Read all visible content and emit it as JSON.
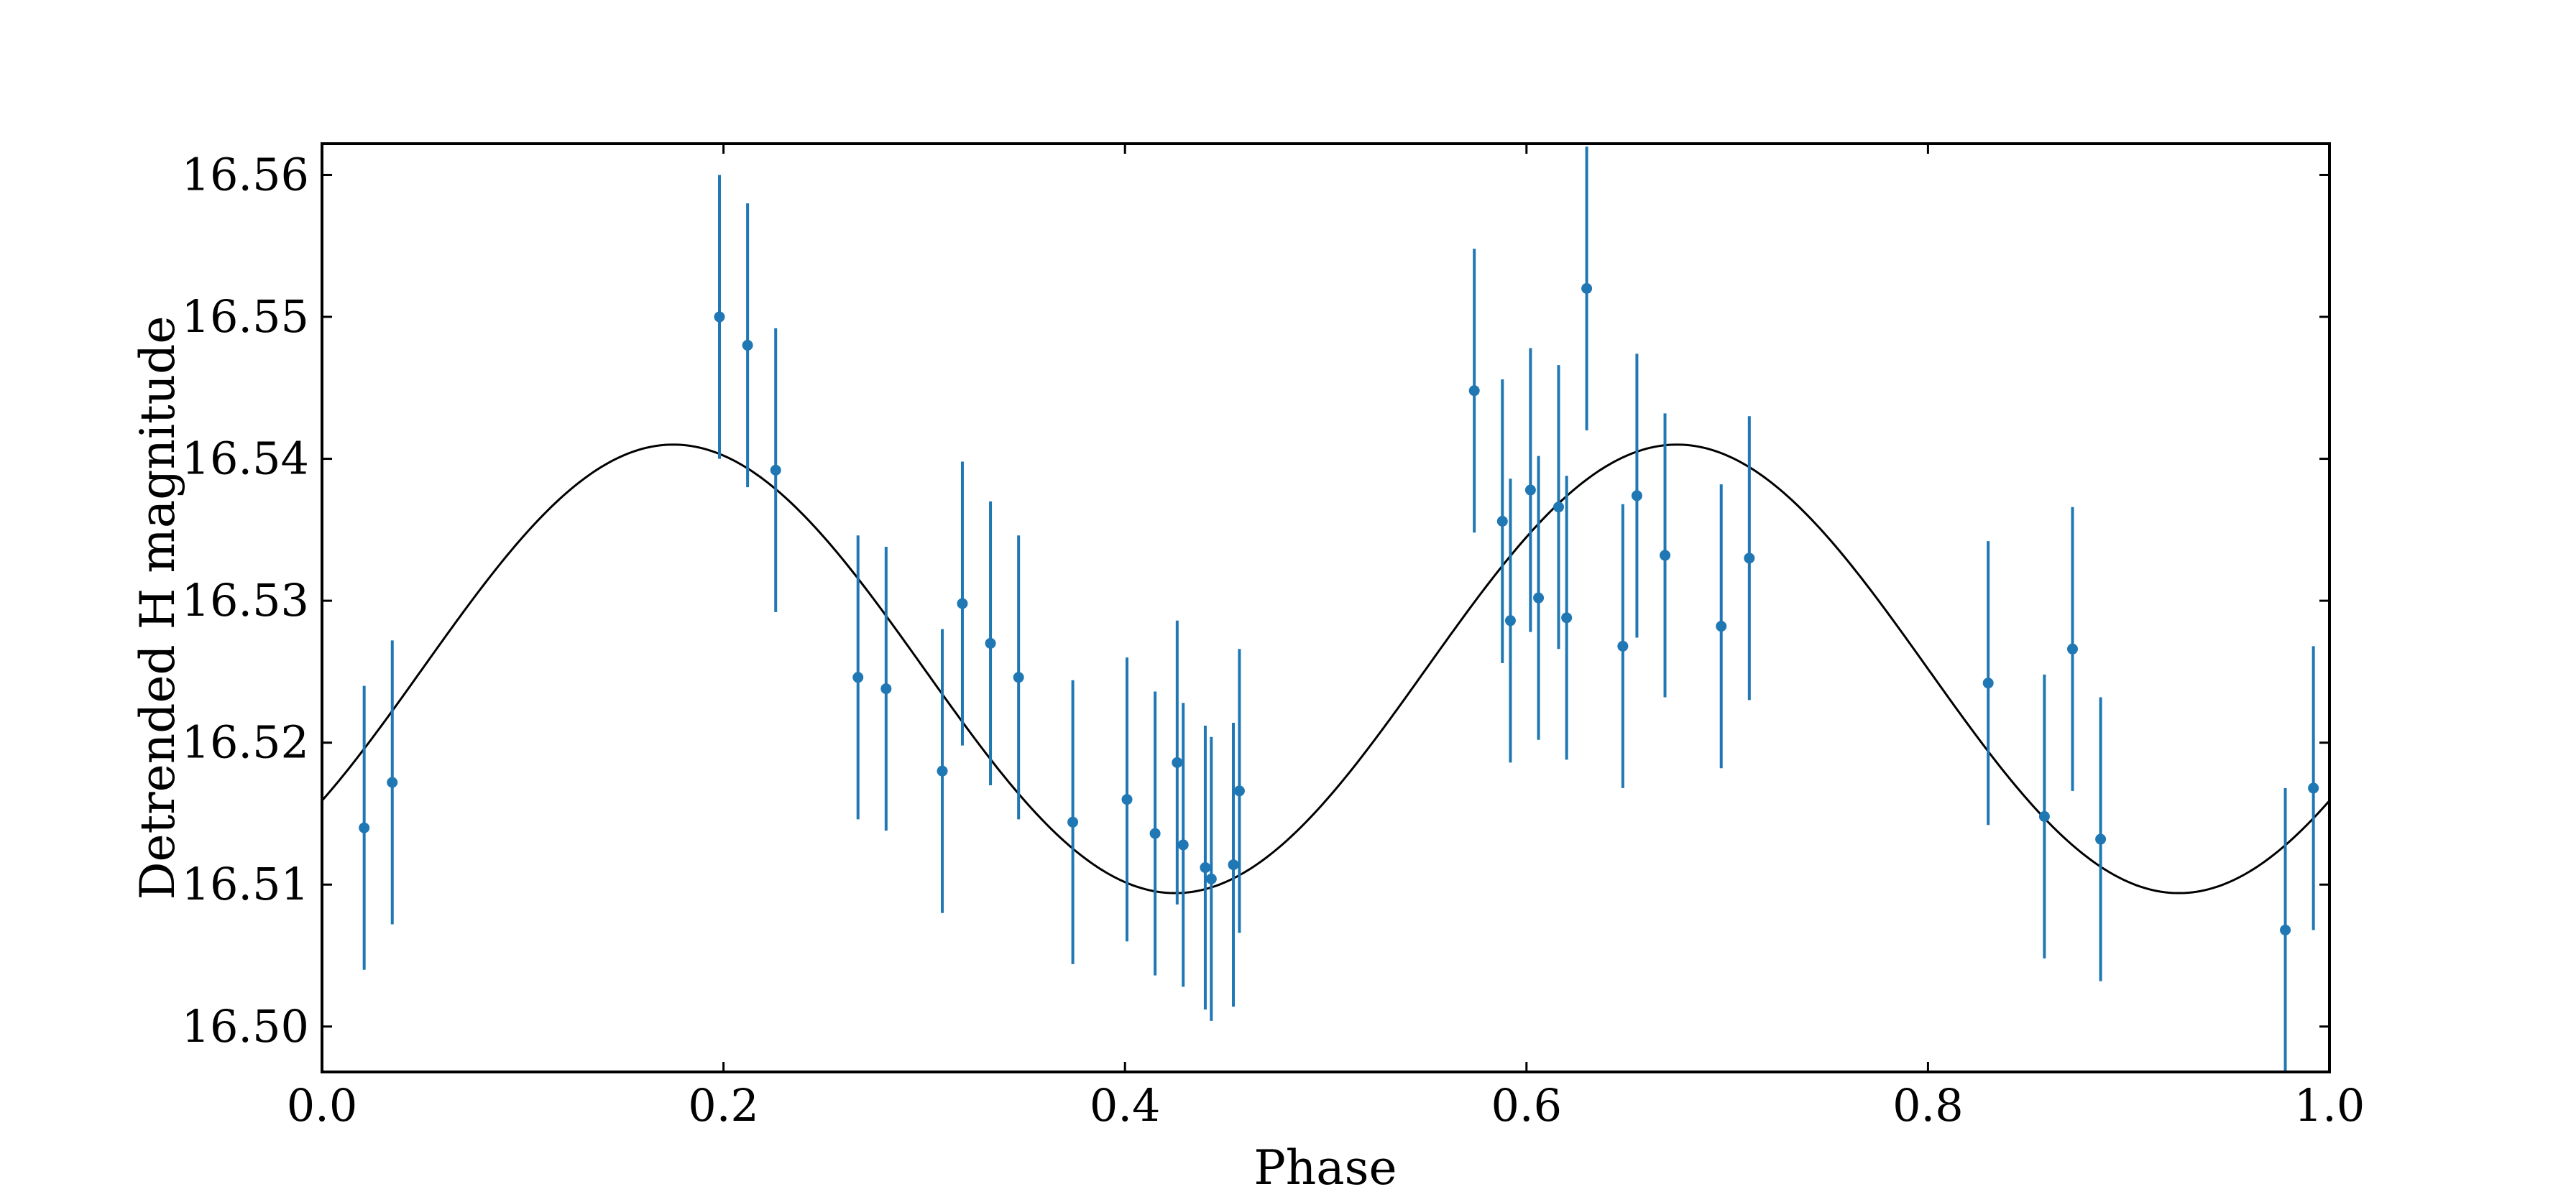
{
  "chart_data": {
    "type": "scatter",
    "title": "",
    "xlabel": "Phase",
    "ylabel": "Detrended H magnitude",
    "xlim": [
      0.0,
      1.0
    ],
    "ylim": [
      16.4968,
      16.5622
    ],
    "x_ticks": [
      0.0,
      0.2,
      0.4,
      0.6,
      0.8,
      1.0
    ],
    "x_tick_labels": [
      "0.0",
      "0.2",
      "0.4",
      "0.6",
      "0.8",
      "1.0"
    ],
    "y_ticks": [
      16.5,
      16.51,
      16.52,
      16.53,
      16.54,
      16.55,
      16.56
    ],
    "y_tick_labels": [
      "16.50",
      "16.51",
      "16.52",
      "16.53",
      "16.54",
      "16.55",
      "16.56"
    ],
    "grid": false,
    "legend": "none",
    "colors": {
      "points": "#1f77b4",
      "model": "#000000",
      "frame": "#000000"
    },
    "series": [
      {
        "kind": "errorbar",
        "x": [
          0.021,
          0.035,
          0.198,
          0.212,
          0.226,
          0.267,
          0.281,
          0.309,
          0.319,
          0.333,
          0.347,
          0.374,
          0.401,
          0.415,
          0.426,
          0.429,
          0.44,
          0.443,
          0.454,
          0.457,
          0.574,
          0.588,
          0.592,
          0.602,
          0.606,
          0.616,
          0.62,
          0.63,
          0.648,
          0.655,
          0.669,
          0.697,
          0.711,
          0.83,
          0.858,
          0.872,
          0.886,
          0.978,
          0.992
        ],
        "y": [
          16.514,
          16.5172,
          16.55,
          16.548,
          16.5392,
          16.5246,
          16.5238,
          16.518,
          16.5298,
          16.527,
          16.5246,
          16.5144,
          16.516,
          16.5136,
          16.5186,
          16.5128,
          16.5112,
          16.5104,
          16.5114,
          16.5166,
          16.5448,
          16.5356,
          16.5286,
          16.5378,
          16.5302,
          16.5366,
          16.5288,
          16.552,
          16.5268,
          16.5374,
          16.5332,
          16.5282,
          16.533,
          16.5242,
          16.5148,
          16.5266,
          16.5132,
          16.5068,
          16.5168
        ],
        "yerr": 0.01
      },
      {
        "kind": "model",
        "function": "sinusoid",
        "mean": 16.5252,
        "amplitude": 0.0158,
        "period": 0.5,
        "peak_phase": 0.175
      }
    ]
  }
}
